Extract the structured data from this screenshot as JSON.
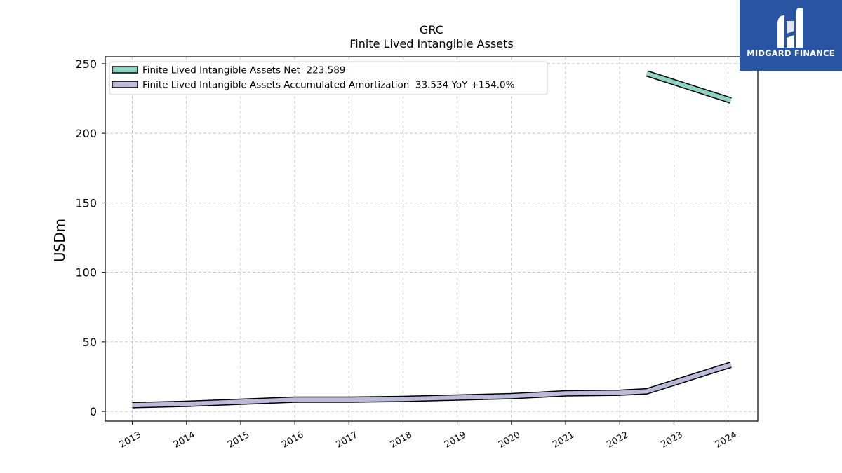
{
  "chart_data": {
    "type": "line",
    "title": "GRC",
    "subtitle": "Finite Lived Intangible Assets",
    "ylabel": "USDm",
    "xlabel": "",
    "ylim": [
      -7,
      255
    ],
    "yticks": [
      0,
      50,
      100,
      150,
      200,
      250
    ],
    "grid": true,
    "legend_position": "top-left",
    "x_ticks": [
      "2013",
      "2014",
      "2015",
      "2016",
      "2017",
      "2018",
      "2019",
      "2020",
      "2021",
      "2022",
      "2023",
      "2024"
    ],
    "x_range": [
      2012.5,
      2024.55
    ],
    "series": [
      {
        "name": "Finite Lived Intangible Assets Net",
        "legend_label": "Finite Lived Intangible Assets Net  223.589",
        "color": "#8fd3c3",
        "x": [
          2022.5,
          2024.05
        ],
        "values": [
          243,
          223.589
        ]
      },
      {
        "name": "Finite Lived Intangible Assets Accumulated Amortization",
        "legend_label": "Finite Lived Intangible Assets Accumulated Amortization  33.534 YoY +154.0%",
        "color": "#bcbadb",
        "x": [
          2013,
          2014,
          2015,
          2016,
          2017,
          2018,
          2019,
          2020,
          2021,
          2022,
          2022.5,
          2024.05
        ],
        "values": [
          4.5,
          5.5,
          7,
          8.5,
          8.5,
          9,
          10,
          11,
          13,
          13.5,
          14.5,
          33.534
        ]
      }
    ]
  },
  "logo": {
    "text": "MIDGARD FINANCE",
    "icon": "midgard-logo-icon",
    "background": "#2a55a4"
  }
}
